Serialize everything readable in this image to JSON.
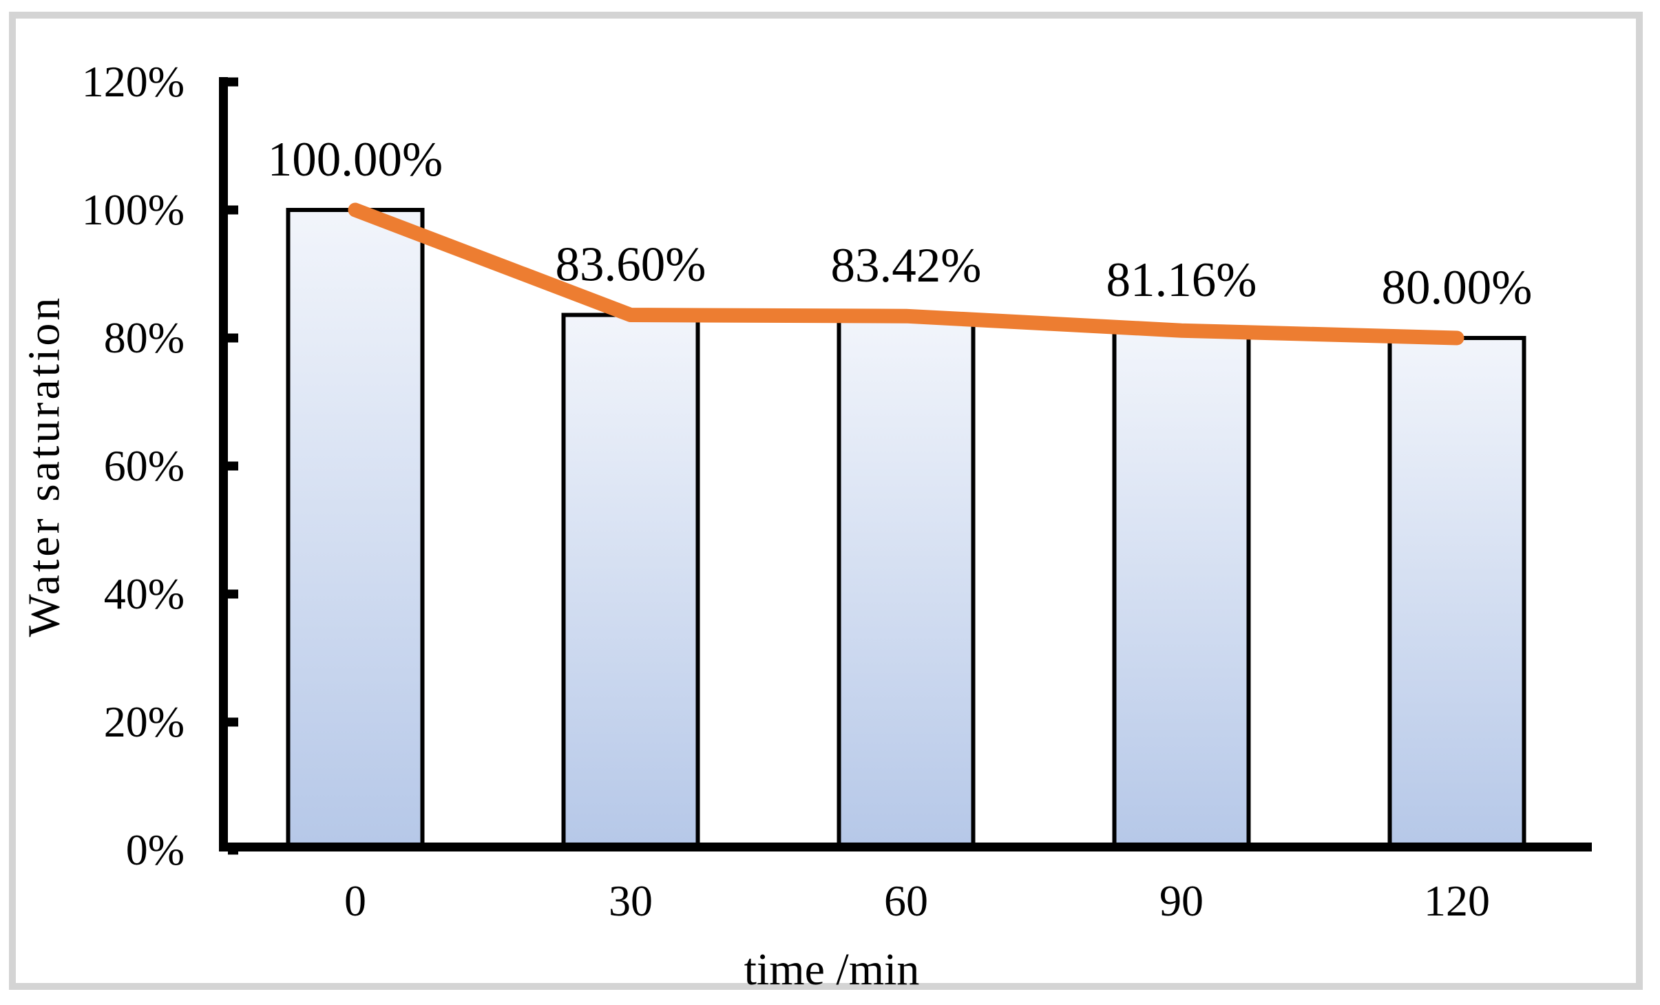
{
  "chart_data": {
    "type": "bar",
    "combo": "bar-with-line-overlay",
    "title": "",
    "categories": [
      "0",
      "30",
      "60",
      "90",
      "120"
    ],
    "series": [
      {
        "name": "water-saturation-bars",
        "type": "bar",
        "values": [
          100.0,
          83.6,
          83.42,
          81.16,
          80.0
        ]
      },
      {
        "name": "water-saturation-line",
        "type": "line",
        "values": [
          100.0,
          83.6,
          83.42,
          81.16,
          80.0
        ]
      }
    ],
    "data_labels": [
      "100.00%",
      "83.60%",
      "83.42%",
      "81.16%",
      "80.00%"
    ],
    "xlabel": "time /min",
    "ylabel": "Water saturation",
    "ylim": [
      0,
      120
    ],
    "yticks": [
      0,
      20,
      40,
      60,
      80,
      100,
      120
    ],
    "ytick_labels": [
      "0%",
      "20%",
      "40%",
      "60%",
      "80%",
      "100%",
      "120%"
    ],
    "grid": "off",
    "legend": "none",
    "colors": {
      "bar_fill_top": "#f2f5fb",
      "bar_fill_bottom": "#b6c8e8",
      "bar_border": "#000000",
      "line": "#ED7D31",
      "axis": "#000000",
      "text": "#000000",
      "frame_border": "#d4d4d4",
      "background": "#ffffff"
    }
  }
}
